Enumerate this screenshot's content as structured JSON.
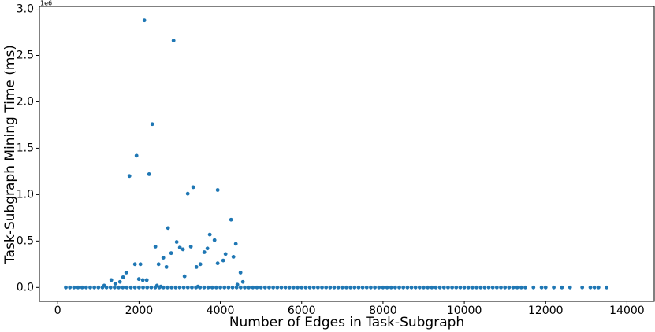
{
  "chart_data": {
    "type": "scatter",
    "xlabel": "Number of Edges in Task-Subgraph",
    "ylabel": "Task-Subgraph Mining Time (ms)",
    "y_offset_label": "1e6",
    "color": "#1f77b4",
    "xlim": [
      -450,
      14670
    ],
    "ylim": [
      -0.15,
      3.03
    ],
    "xticks": [
      0,
      2000,
      4000,
      6000,
      8000,
      10000,
      12000,
      14000
    ],
    "yticks": [
      {
        "value": 0,
        "label": "0.0"
      },
      0.5,
      {
        "value": 1,
        "label": "1.0"
      },
      1.5,
      {
        "value": 2,
        "label": "2.0"
      },
      2.5,
      {
        "value": 3,
        "label": "3.0"
      }
    ],
    "x": [
      2132,
      2849,
      2326,
      1938,
      1764,
      2248,
      3333,
      3198,
      3934,
      2713,
      4264,
      2926,
      3740,
      3857,
      4380,
      3275,
      2403,
      3004,
      3081,
      3682,
      2790,
      3605,
      4128,
      4322,
      2597,
      4070,
      3508,
      3934,
      1899,
      2035,
      2481,
      2674,
      3411,
      1686,
      4496,
      1609,
      3120,
      1996,
      2093,
      2190,
      1318,
      1531,
      1415,
      4554,
      4419,
      1143,
      2442,
      2538,
      3450,
      200,
      300,
      400,
      500,
      600,
      700,
      800,
      900,
      1000,
      1100,
      1200,
      1300,
      1400,
      1500,
      1600,
      1700,
      1800,
      1900,
      2000,
      2100,
      2200,
      2300,
      2400,
      2500,
      2600,
      2700,
      2800,
      2900,
      3000,
      3100,
      3200,
      3300,
      3400,
      3500,
      3600,
      3700,
      3800,
      3900,
      4000,
      4100,
      4200,
      4300,
      4400,
      4500,
      4600,
      4700,
      4800,
      4900,
      5000,
      5100,
      5200,
      5300,
      5400,
      5500,
      5600,
      5700,
      5800,
      5900,
      6000,
      6100,
      6200,
      6300,
      6400,
      6500,
      6600,
      6700,
      6800,
      6900,
      7000,
      7100,
      7200,
      7300,
      7400,
      7500,
      7600,
      7700,
      7800,
      7900,
      8000,
      8100,
      8200,
      8300,
      8400,
      8500,
      8600,
      8700,
      8800,
      8900,
      9000,
      9100,
      9200,
      9300,
      9400,
      9500,
      9600,
      9700,
      9800,
      9900,
      10000,
      10100,
      10200,
      10300,
      10400,
      10500,
      10600,
      10700,
      10800,
      10900,
      11000,
      11100,
      11200,
      11300,
      11400,
      11500,
      11700,
      11900,
      12000,
      12200,
      12400,
      12600,
      12900,
      13100,
      13200,
      13300,
      13500
    ],
    "y": [
      2.88,
      2.66,
      1.76,
      1.42,
      1.2,
      1.22,
      1.08,
      1.01,
      1.05,
      0.64,
      0.73,
      0.49,
      0.57,
      0.51,
      0.47,
      0.44,
      0.44,
      0.43,
      0.41,
      0.42,
      0.37,
      0.38,
      0.36,
      0.33,
      0.32,
      0.29,
      0.25,
      0.26,
      0.25,
      0.25,
      0.25,
      0.22,
      0.22,
      0.16,
      0.16,
      0.11,
      0.12,
      0.09,
      0.08,
      0.08,
      0.08,
      0.06,
      0.04,
      0.06,
      0.03,
      0.02,
      0.02,
      0.01,
      0.01,
      0,
      0,
      0,
      0,
      0,
      0,
      0,
      0,
      0,
      0,
      0,
      0,
      0,
      0,
      0,
      0,
      0,
      0,
      0,
      0,
      0,
      0,
      0,
      0,
      0,
      0,
      0,
      0,
      0,
      0,
      0,
      0,
      0,
      0,
      0,
      0,
      0,
      0,
      0,
      0,
      0,
      0,
      0,
      0,
      0,
      0,
      0,
      0,
      0,
      0,
      0,
      0,
      0,
      0,
      0,
      0,
      0,
      0,
      0,
      0,
      0,
      0,
      0,
      0,
      0,
      0,
      0,
      0,
      0,
      0,
      0,
      0,
      0,
      0,
      0,
      0,
      0,
      0,
      0,
      0,
      0,
      0,
      0,
      0,
      0,
      0,
      0,
      0,
      0,
      0,
      0,
      0,
      0,
      0,
      0,
      0,
      0,
      0,
      0,
      0,
      0,
      0,
      0,
      0,
      0,
      0,
      0,
      0,
      0,
      0,
      0,
      0,
      0,
      0,
      0,
      0,
      0,
      0,
      0,
      0,
      0,
      0,
      0,
      0,
      0
    ]
  }
}
